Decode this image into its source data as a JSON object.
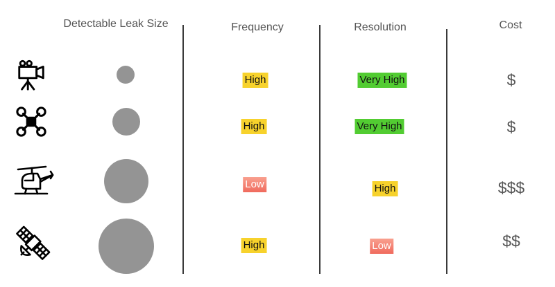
{
  "headers": {
    "leak_size": "Detectable Leak Size",
    "frequency": "Frequency",
    "resolution": "Resolution",
    "cost": "Cost"
  },
  "colors": {
    "high": "#f7d22c",
    "very_high": "#52cc32",
    "low": "#f06a5d",
    "circle": "#949494"
  },
  "rows": [
    {
      "icon": "camera-tripod-icon",
      "leak_size_rank": 1,
      "frequency": "High",
      "resolution": "Very High",
      "cost": "$"
    },
    {
      "icon": "drone-icon",
      "leak_size_rank": 2,
      "frequency": "High",
      "resolution": "Very High",
      "cost": "$"
    },
    {
      "icon": "helicopter-icon",
      "leak_size_rank": 3,
      "frequency": "Low",
      "resolution": "High",
      "cost": "$$$"
    },
    {
      "icon": "satellite-icon",
      "leak_size_rank": 4,
      "frequency": "High",
      "resolution": "Low",
      "cost": "$$"
    }
  ]
}
